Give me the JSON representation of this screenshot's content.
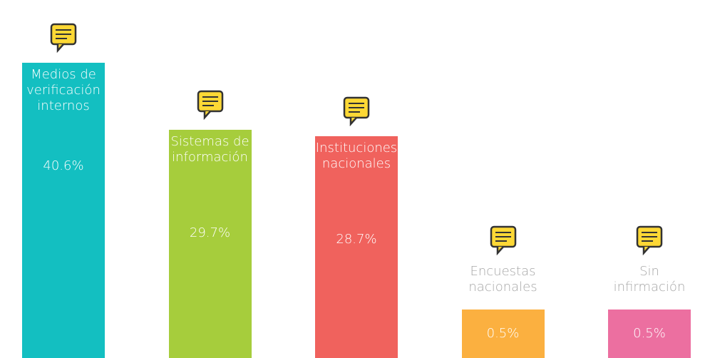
{
  "chart_data": {
    "type": "bar",
    "categories": [
      "Medios de verificación internos",
      "Sistemas de información",
      "Instituciones nacionales",
      "Encuestas nacionales",
      "Sin infirmación"
    ],
    "values": [
      40.6,
      29.7,
      28.7,
      0.5,
      0.5
    ],
    "value_labels": [
      "40.6%",
      "29.7%",
      "28.7%",
      "0.5%",
      "0.5%"
    ],
    "colors": [
      "#13bfc1",
      "#a6cd3c",
      "#f0625d",
      "#fbb040",
      "#ec6fa0"
    ]
  }
}
